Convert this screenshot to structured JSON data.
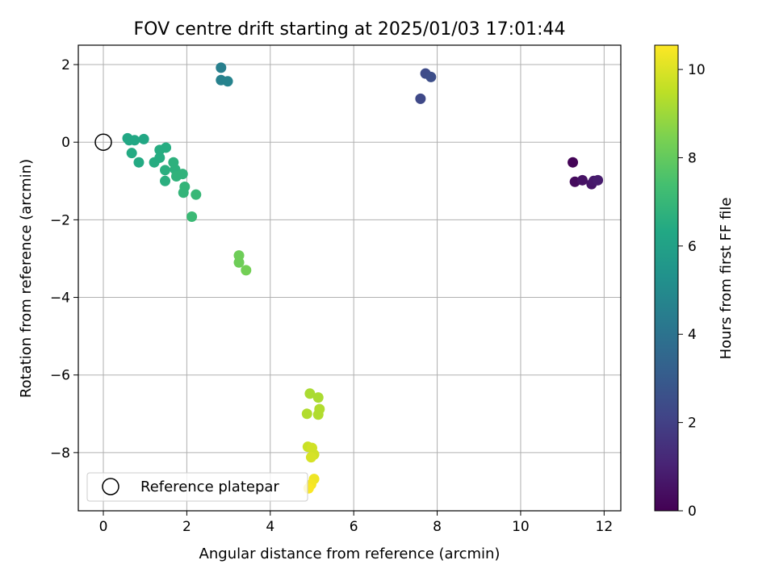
{
  "chart_data": {
    "type": "scatter",
    "title": "FOV centre drift starting at 2025/01/03 17:01:44",
    "xlabel": "Angular distance from reference (arcmin)",
    "ylabel": "Rotation from reference (arcmin)",
    "xlim": [
      -0.6,
      12.4
    ],
    "ylim": [
      -9.5,
      2.5
    ],
    "xticks": [
      0,
      2,
      4,
      6,
      8,
      10,
      12
    ],
    "yticks": [
      2,
      0,
      -2,
      -4,
      -6,
      -8
    ],
    "xtick_labels": [
      "0",
      "2",
      "4",
      "6",
      "8",
      "10",
      "12"
    ],
    "ytick_labels": [
      "2",
      "0",
      "−2",
      "−4",
      "−6",
      "−8"
    ],
    "grid": true,
    "legend": {
      "position": "lower-left",
      "entries": [
        {
          "label": "Reference platepar",
          "marker": "open-circle"
        }
      ]
    },
    "reference_point": {
      "x": 0,
      "y": 0
    },
    "colorbar": {
      "label": "Hours from first FF file",
      "range": [
        0,
        10.55
      ],
      "ticks": [
        0,
        2,
        4,
        6,
        8,
        10
      ],
      "tick_labels": [
        "0",
        "2",
        "4",
        "6",
        "8",
        "10"
      ],
      "colormap": "viridis"
    },
    "points": [
      {
        "x": 11.25,
        "y": -0.52,
        "c": 0.1
      },
      {
        "x": 11.3,
        "y": -1.02,
        "c": 0.3
      },
      {
        "x": 11.48,
        "y": -0.98,
        "c": 0.5
      },
      {
        "x": 11.7,
        "y": -1.08,
        "c": 0.6
      },
      {
        "x": 11.75,
        "y": -1.0,
        "c": 0.7
      },
      {
        "x": 11.85,
        "y": -0.98,
        "c": 0.8
      },
      {
        "x": 7.6,
        "y": 1.12,
        "c": 2.3
      },
      {
        "x": 7.72,
        "y": 1.77,
        "c": 2.4
      },
      {
        "x": 7.85,
        "y": 1.68,
        "c": 2.5
      },
      {
        "x": 2.82,
        "y": 1.92,
        "c": 4.5
      },
      {
        "x": 2.82,
        "y": 1.6,
        "c": 4.6
      },
      {
        "x": 2.98,
        "y": 1.57,
        "c": 4.7
      },
      {
        "x": 0.58,
        "y": 0.1,
        "c": 6.3
      },
      {
        "x": 0.62,
        "y": 0.05,
        "c": 6.3
      },
      {
        "x": 0.75,
        "y": 0.05,
        "c": 6.3
      },
      {
        "x": 0.97,
        "y": 0.08,
        "c": 6.3
      },
      {
        "x": 0.68,
        "y": -0.28,
        "c": 6.4
      },
      {
        "x": 0.85,
        "y": -0.52,
        "c": 6.4
      },
      {
        "x": 1.22,
        "y": -0.52,
        "c": 6.5
      },
      {
        "x": 1.35,
        "y": -0.2,
        "c": 6.5
      },
      {
        "x": 1.5,
        "y": -0.14,
        "c": 6.5
      },
      {
        "x": 1.35,
        "y": -0.4,
        "c": 6.5
      },
      {
        "x": 1.48,
        "y": -0.72,
        "c": 6.6
      },
      {
        "x": 1.48,
        "y": -1.0,
        "c": 6.6
      },
      {
        "x": 1.68,
        "y": -0.52,
        "c": 6.7
      },
      {
        "x": 1.72,
        "y": -0.7,
        "c": 6.7
      },
      {
        "x": 1.75,
        "y": -0.88,
        "c": 6.8
      },
      {
        "x": 1.9,
        "y": -0.82,
        "c": 6.8
      },
      {
        "x": 1.95,
        "y": -1.15,
        "c": 6.9
      },
      {
        "x": 1.92,
        "y": -1.3,
        "c": 6.9
      },
      {
        "x": 2.22,
        "y": -1.35,
        "c": 7.0
      },
      {
        "x": 2.12,
        "y": -1.92,
        "c": 7.1
      },
      {
        "x": 3.25,
        "y": -2.92,
        "c": 8.2
      },
      {
        "x": 3.25,
        "y": -3.1,
        "c": 8.2
      },
      {
        "x": 3.42,
        "y": -3.3,
        "c": 8.3
      },
      {
        "x": 4.95,
        "y": -6.48,
        "c": 9.2
      },
      {
        "x": 5.15,
        "y": -6.58,
        "c": 9.2
      },
      {
        "x": 4.88,
        "y": -7.0,
        "c": 9.3
      },
      {
        "x": 5.18,
        "y": -6.88,
        "c": 9.3
      },
      {
        "x": 5.15,
        "y": -7.02,
        "c": 9.3
      },
      {
        "x": 4.9,
        "y": -7.85,
        "c": 9.7
      },
      {
        "x": 5.0,
        "y": -7.88,
        "c": 9.8
      },
      {
        "x": 5.05,
        "y": -8.05,
        "c": 9.8
      },
      {
        "x": 4.98,
        "y": -8.12,
        "c": 9.9
      },
      {
        "x": 5.05,
        "y": -8.68,
        "c": 10.3
      },
      {
        "x": 4.98,
        "y": -8.82,
        "c": 10.4
      },
      {
        "x": 4.92,
        "y": -8.92,
        "c": 10.5
      }
    ]
  }
}
